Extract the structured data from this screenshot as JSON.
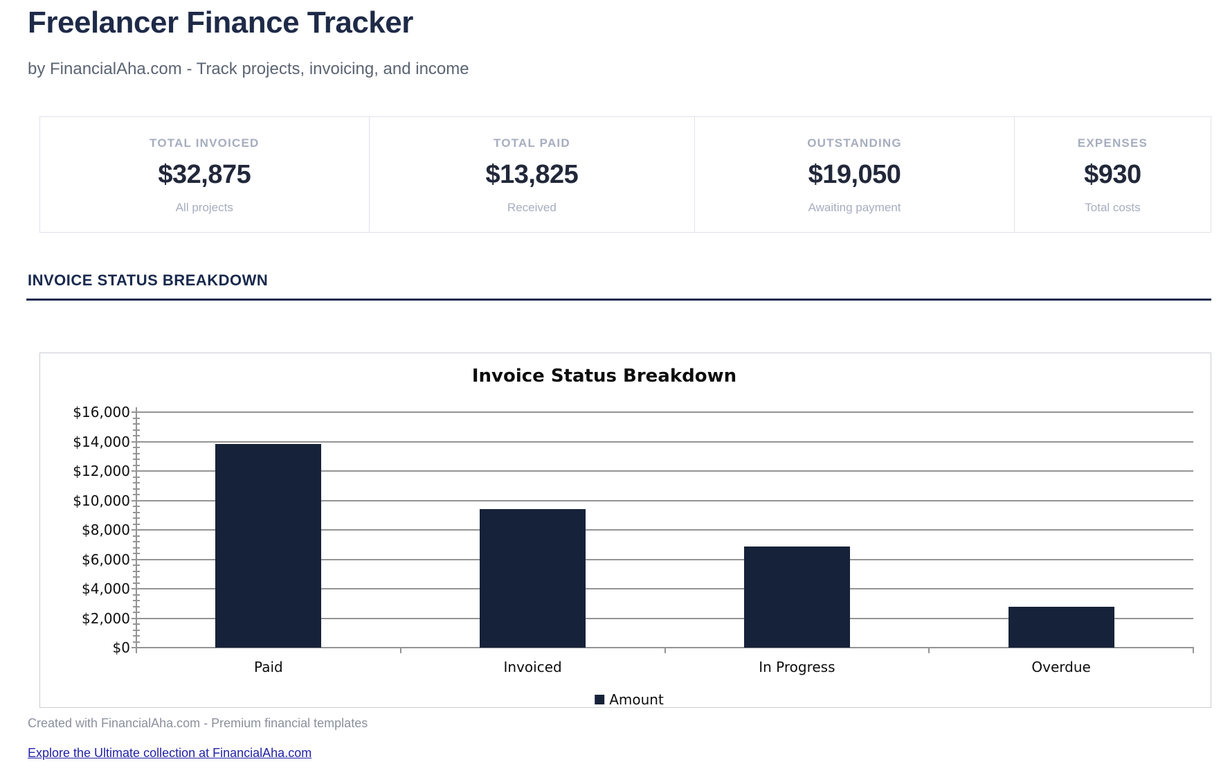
{
  "header": {
    "title": "Freelancer Finance Tracker",
    "subtitle": "by FinancialAha.com - Track projects, invoicing, and income"
  },
  "stats": [
    {
      "label": "TOTAL INVOICED",
      "value": "$32,875",
      "sublabel": "All projects"
    },
    {
      "label": "TOTAL PAID",
      "value": "$13,825",
      "sublabel": "Received"
    },
    {
      "label": "OUTSTANDING",
      "value": "$19,050",
      "sublabel": "Awaiting payment"
    },
    {
      "label": "EXPENSES",
      "value": "$930",
      "sublabel": "Total costs"
    }
  ],
  "section": {
    "heading": "INVOICE STATUS BREAKDOWN"
  },
  "chart_data": {
    "type": "bar",
    "title": "Invoice Status Breakdown",
    "categories": [
      "Paid",
      "Invoiced",
      "In Progress",
      "Overdue"
    ],
    "series": [
      {
        "name": "Amount",
        "values": [
          13825,
          9400,
          6850,
          2800
        ]
      }
    ],
    "ylim": [
      0,
      16000
    ],
    "ytick_interval": 2000,
    "ytick_minor_interval": 400,
    "ytick_prefix": "$",
    "grid": true,
    "legend_position": "bottom",
    "bar_color": "#162239"
  },
  "footer": {
    "credit": "Created with FinancialAha.com - Premium financial templates",
    "link_text": "Explore the Ultimate collection at FinancialAha.com"
  },
  "colors": {
    "title_navy": "#1e2a47",
    "section_navy": "#19294d",
    "bar_navy": "#162239",
    "gridline_grey": "#949494",
    "card_muted": "#a6adbf",
    "link_blue": "#2222a8"
  }
}
